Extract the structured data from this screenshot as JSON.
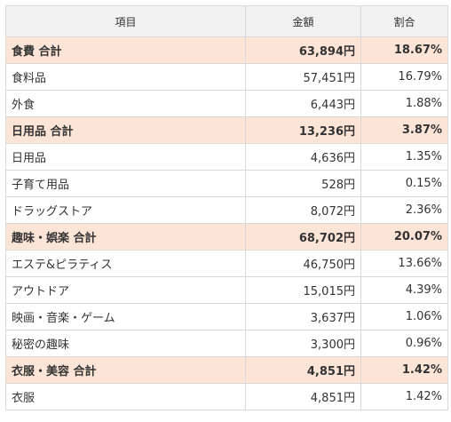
{
  "headers": [
    "項目",
    "金額",
    "割合"
  ],
  "rows": [
    {
      "type": "subtotal",
      "item": "食費 合計",
      "amount": "63,894円",
      "ratio": "18.67%"
    },
    {
      "type": "row",
      "item": "食料品",
      "amount": "57,451円",
      "ratio": "16.79%"
    },
    {
      "type": "row",
      "item": "外食",
      "amount": "6,443円",
      "ratio": "1.88%"
    },
    {
      "type": "subtotal",
      "item": "日用品 合計",
      "amount": "13,236円",
      "ratio": "3.87%"
    },
    {
      "type": "row",
      "item": "日用品",
      "amount": "4,636円",
      "ratio": "1.35%"
    },
    {
      "type": "row",
      "item": "子育て用品",
      "amount": "528円",
      "ratio": "0.15%"
    },
    {
      "type": "row",
      "item": "ドラッグストア",
      "amount": "8,072円",
      "ratio": "2.36%"
    },
    {
      "type": "subtotal",
      "item": "趣味・娯楽 合計",
      "amount": "68,702円",
      "ratio": "20.07%"
    },
    {
      "type": "row",
      "item": "エステ&ピラティス",
      "amount": "46,750円",
      "ratio": "13.66%"
    },
    {
      "type": "row",
      "item": "アウトドア",
      "amount": "15,015円",
      "ratio": "4.39%"
    },
    {
      "type": "row",
      "item": "映画・音楽・ゲーム",
      "amount": "3,637円",
      "ratio": "1.06%"
    },
    {
      "type": "row",
      "item": "秘密の趣味",
      "amount": "3,300円",
      "ratio": "0.96%"
    },
    {
      "type": "subtotal",
      "item": "衣服・美容 合計",
      "amount": "4,851円",
      "ratio": "1.42%"
    },
    {
      "type": "row",
      "item": "衣服",
      "amount": "4,851円",
      "ratio": "1.42%"
    }
  ]
}
